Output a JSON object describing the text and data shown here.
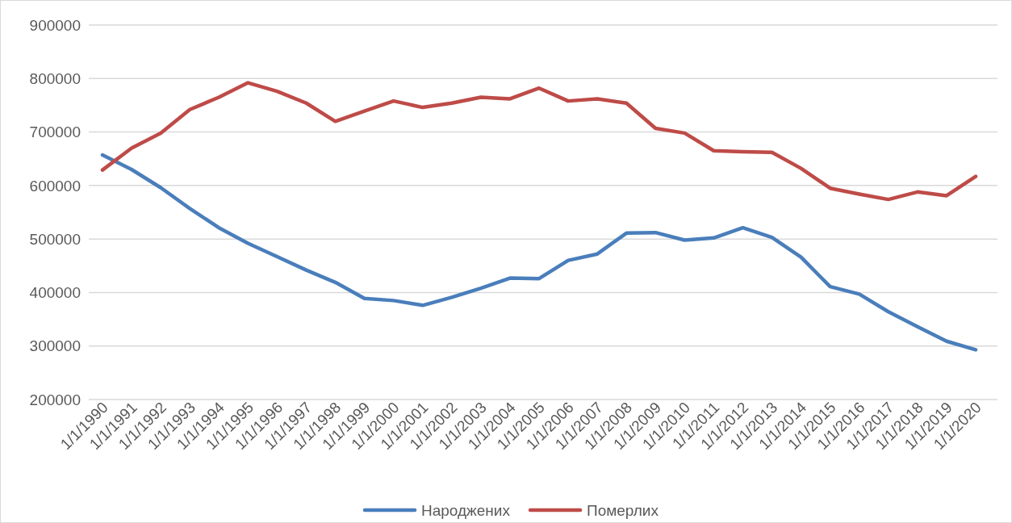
{
  "chart_data": {
    "type": "line",
    "categories": [
      "1/1/1990",
      "1/1/1991",
      "1/1/1992",
      "1/1/1993",
      "1/1/1994",
      "1/1/1995",
      "1/1/1996",
      "1/1/1997",
      "1/1/1998",
      "1/1/1999",
      "1/1/2000",
      "1/1/2001",
      "1/1/2002",
      "1/1/2003",
      "1/1/2004",
      "1/1/2005",
      "1/1/2006",
      "1/1/2007",
      "1/1/2008",
      "1/1/2009",
      "1/1/2010",
      "1/1/2011",
      "1/1/2012",
      "1/1/2013",
      "1/1/2014",
      "1/1/2015",
      "1/1/2016",
      "1/1/2017",
      "1/1/2018",
      "1/1/2019",
      "1/1/2020"
    ],
    "series": [
      {
        "name": "Народжених",
        "color": "#4a7ebb",
        "values": [
          657000,
          630000,
          596000,
          557000,
          521000,
          492000,
          467000,
          442000,
          419000,
          389000,
          385000,
          376000,
          391000,
          408000,
          427000,
          426000,
          460000,
          472000,
          511000,
          512000,
          498000,
          502000,
          521000,
          503000,
          466000,
          411000,
          397000,
          364000,
          336000,
          309000,
          293000
        ]
      },
      {
        "name": "Померлих",
        "color": "#be4b48",
        "values": [
          629000,
          670000,
          698000,
          742000,
          765000,
          792000,
          776000,
          754000,
          720000,
          739000,
          758000,
          746000,
          754000,
          765000,
          762000,
          782000,
          758000,
          762000,
          754000,
          707000,
          698000,
          665000,
          663000,
          662000,
          632000,
          595000,
          584000,
          574000,
          588000,
          581000,
          617000
        ]
      }
    ],
    "ylim": [
      200000,
      900000
    ],
    "yticks": [
      200000,
      300000,
      400000,
      500000,
      600000,
      700000,
      800000,
      900000
    ],
    "grid": "y",
    "legend": "bottom",
    "line_style": "solid"
  }
}
